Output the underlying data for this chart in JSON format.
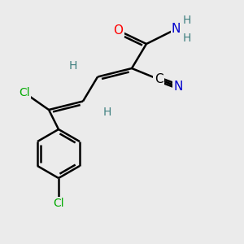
{
  "background_color": "#ebebeb",
  "atom_colors": {
    "C": "#000000",
    "N": "#0000cc",
    "O": "#ff0000",
    "Cl": "#00aa00",
    "H": "#408080"
  },
  "bond_color": "#000000",
  "bond_width": 1.8,
  "font_size_atoms": 11,
  "font_size_h": 10,
  "font_size_cl": 10
}
